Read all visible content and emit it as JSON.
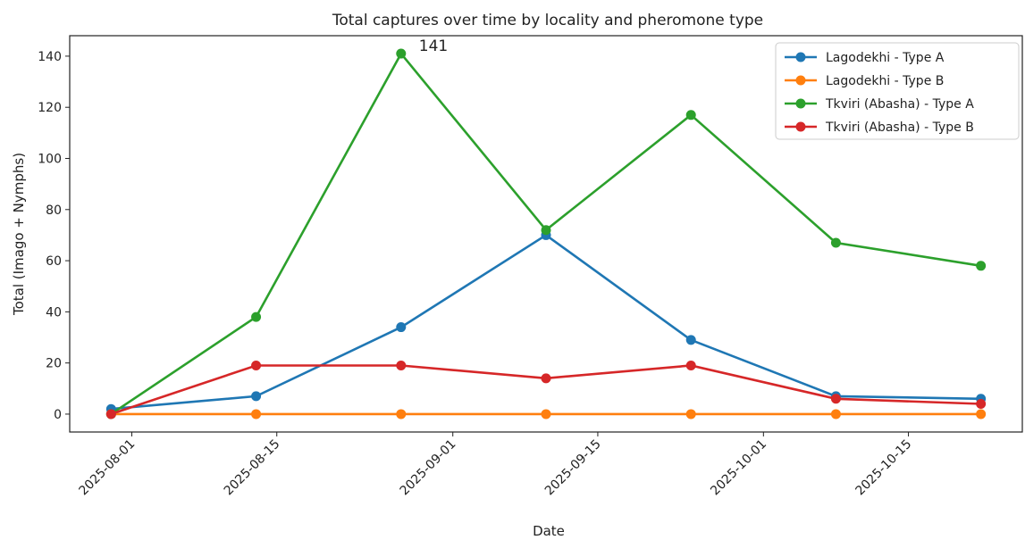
{
  "chart_data": {
    "type": "line",
    "title": "Total captures over time by locality and pheromone type",
    "xlabel": "Date",
    "ylabel": "Total (Imago + Nymphs)",
    "x": [
      "2025-07-30",
      "2025-08-13",
      "2025-08-27",
      "2025-09-10",
      "2025-09-24",
      "2025-10-08",
      "2025-10-22"
    ],
    "xlim": [
      "2025-07-26",
      "2025-10-26"
    ],
    "ylim": [
      -7,
      148
    ],
    "x_ticks": [
      "2025-08-01",
      "2025-08-15",
      "2025-09-01",
      "2025-09-15",
      "2025-10-01",
      "2025-10-15"
    ],
    "y_ticks": [
      0,
      20,
      40,
      60,
      80,
      100,
      120,
      140
    ],
    "grid": false,
    "legend_position": "top-right",
    "series": [
      {
        "name": "Lagodekhi - Type A",
        "color": "#1f77b4",
        "values": [
          2,
          7,
          34,
          70,
          29,
          7,
          6
        ]
      },
      {
        "name": "Lagodekhi - Type B",
        "color": "#ff7f0e",
        "values": [
          0,
          0,
          0,
          0,
          0,
          0,
          0
        ]
      },
      {
        "name": "Tkviri (Abasha) - Type A",
        "color": "#2ca02c",
        "values": [
          0,
          38,
          141,
          72,
          117,
          67,
          58
        ]
      },
      {
        "name": "Tkviri (Abasha) - Type B",
        "color": "#d62728",
        "values": [
          0,
          19,
          19,
          14,
          19,
          6,
          4
        ]
      }
    ],
    "annotations": [
      {
        "text": "141",
        "x": "2025-08-27",
        "y": 141
      }
    ]
  }
}
